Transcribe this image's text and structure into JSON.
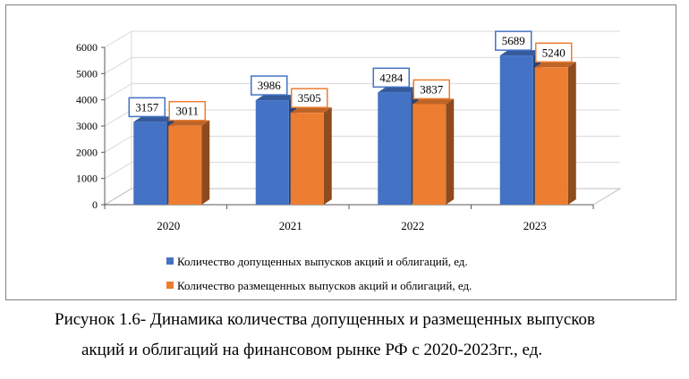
{
  "chart_data": {
    "type": "bar",
    "title": "",
    "categories": [
      "2020",
      "2021",
      "2022",
      "2023"
    ],
    "series": [
      {
        "name": "Количество допущенных выпусков акций и облигаций, ед.",
        "values": [
          3157,
          3986,
          4284,
          5689
        ],
        "color": "#4472c4"
      },
      {
        "name": "Количество размещенных выпусков акций и облигаций, ед.",
        "values": [
          3011,
          3505,
          3837,
          5240
        ],
        "color": "#ed7d31"
      }
    ],
    "yticks": [
      "0",
      "1000",
      "2000",
      "3000",
      "4000",
      "5000",
      "6000"
    ],
    "ylim": [
      0,
      6000
    ],
    "legend_position": "bottom",
    "grid": true
  },
  "caption": {
    "line1": "Рисунок 1.6- Динамика количества допущенных и размещенных выпусков",
    "line2": "акций и облигаций на финансовом рынке РФ с 2020-2023гг., ед."
  }
}
